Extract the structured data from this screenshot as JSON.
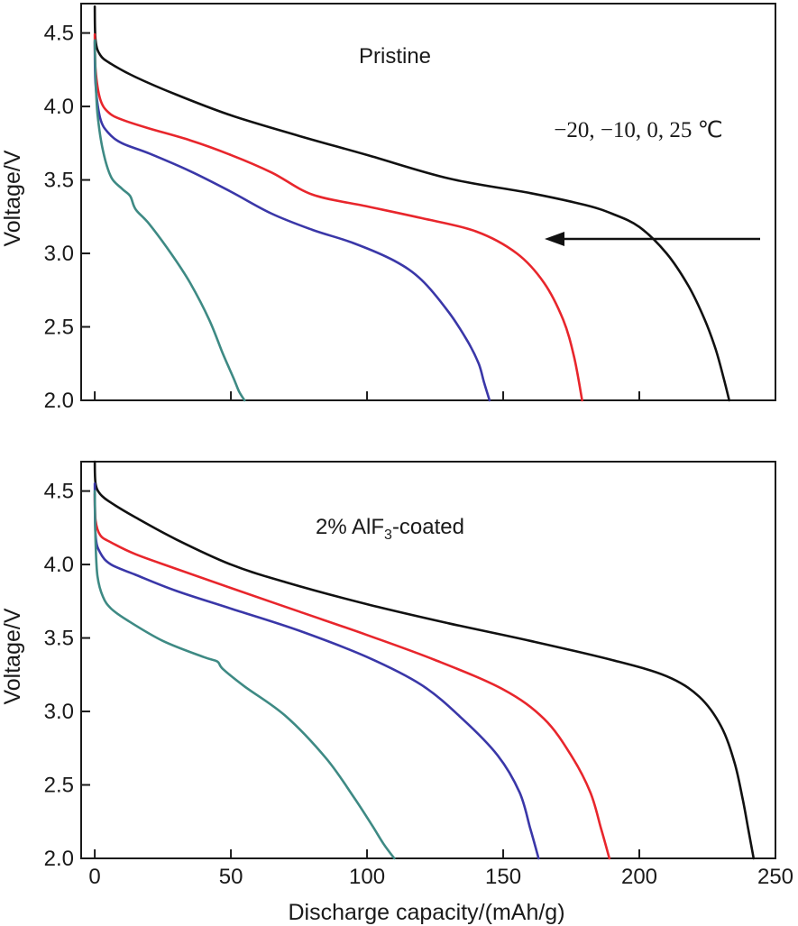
{
  "chart_data": [
    {
      "type": "line",
      "title": "Pristine",
      "annotation": "−20, −10, 0, 25 ℃",
      "annotation_arrow": "pointing left (decreasing temperature)",
      "xlabel": "",
      "ylabel": "Voltage/V",
      "xlim": [
        -5,
        250
      ],
      "ylim": [
        2.0,
        4.7
      ],
      "xticks": [
        0,
        50,
        100,
        150,
        200,
        250
      ],
      "yticks": [
        "2.0",
        "2.5",
        "3.0",
        "3.5",
        "4.0",
        "4.5"
      ],
      "series": [
        {
          "name": "25 ℃",
          "color": "#111111",
          "x": [
            0,
            0.3,
            2,
            6,
            15,
            30,
            50,
            75,
            100,
            130,
            160,
            180,
            190,
            200,
            210,
            218,
            224,
            228,
            231,
            233
          ],
          "y": [
            4.68,
            4.45,
            4.35,
            4.29,
            4.2,
            4.08,
            3.94,
            3.8,
            3.67,
            3.51,
            3.41,
            3.33,
            3.27,
            3.18,
            3.0,
            2.78,
            2.55,
            2.35,
            2.15,
            2.0
          ]
        },
        {
          "name": "0 ℃",
          "color": "#e8262c",
          "x": [
            0,
            0.3,
            2,
            5,
            10,
            20,
            35,
            50,
            65,
            80,
            100,
            120,
            140,
            155,
            165,
            172,
            176,
            179
          ],
          "y": [
            4.49,
            4.25,
            4.05,
            3.96,
            3.91,
            3.85,
            3.77,
            3.67,
            3.55,
            3.4,
            3.32,
            3.24,
            3.15,
            3.0,
            2.8,
            2.55,
            2.3,
            2.0
          ]
        },
        {
          "name": "-10 ℃",
          "color": "#3a37a8",
          "x": [
            0,
            0.3,
            2,
            5,
            10,
            20,
            35,
            50,
            65,
            80,
            95,
            110,
            120,
            130,
            137,
            141,
            143,
            145
          ],
          "y": [
            4.44,
            4.15,
            3.92,
            3.82,
            3.75,
            3.68,
            3.56,
            3.42,
            3.27,
            3.16,
            3.07,
            2.95,
            2.82,
            2.6,
            2.4,
            2.25,
            2.12,
            2.0
          ]
        },
        {
          "name": "-20 ℃",
          "color": "#3e8a84",
          "x": [
            0,
            0.3,
            1,
            3,
            6,
            10,
            13,
            15,
            20,
            28,
            35,
            42,
            47,
            51,
            53,
            55
          ],
          "y": [
            4.45,
            4.2,
            3.95,
            3.7,
            3.52,
            3.44,
            3.39,
            3.3,
            3.2,
            3.0,
            2.8,
            2.55,
            2.32,
            2.15,
            2.06,
            2.0
          ]
        }
      ]
    },
    {
      "type": "line",
      "title": "2% AlF₃-coated",
      "annotation": "2% AlF",
      "annotation_sub": "3",
      "annotation_tail": "-coated",
      "xlabel": "Discharge capacity/(mAh/g)",
      "ylabel": "Voltage/V",
      "xlim": [
        -5,
        250
      ],
      "ylim": [
        2.0,
        4.7
      ],
      "xticks": [
        "0",
        "50",
        "100",
        "150",
        "200",
        "250"
      ],
      "yticks": [
        "2.0",
        "2.5",
        "3.0",
        "3.5",
        "4.0",
        "4.5"
      ],
      "series": [
        {
          "name": "25 ℃",
          "color": "#111111",
          "x": [
            0,
            0.3,
            2,
            6,
            15,
            30,
            50,
            70,
            100,
            130,
            160,
            190,
            210,
            222,
            230,
            235,
            238,
            240,
            242
          ],
          "y": [
            4.7,
            4.55,
            4.48,
            4.42,
            4.32,
            4.17,
            4.0,
            3.88,
            3.73,
            3.6,
            3.48,
            3.35,
            3.24,
            3.1,
            2.9,
            2.65,
            2.4,
            2.2,
            2.0
          ]
        },
        {
          "name": "0 ℃",
          "color": "#e8262c",
          "x": [
            0,
            0.3,
            2,
            6,
            15,
            30,
            50,
            75,
            100,
            125,
            150,
            165,
            175,
            182,
            186,
            189
          ],
          "y": [
            4.48,
            4.3,
            4.2,
            4.15,
            4.07,
            3.97,
            3.84,
            3.68,
            3.52,
            3.35,
            3.15,
            2.95,
            2.7,
            2.45,
            2.2,
            2.0
          ]
        },
        {
          "name": "-10 ℃",
          "color": "#3a37a8",
          "x": [
            0,
            0.3,
            2,
            6,
            15,
            30,
            50,
            75,
            100,
            120,
            135,
            148,
            156,
            160,
            163
          ],
          "y": [
            4.55,
            4.2,
            4.08,
            4.0,
            3.93,
            3.82,
            3.7,
            3.55,
            3.37,
            3.18,
            2.95,
            2.7,
            2.45,
            2.2,
            2.0
          ]
        },
        {
          "name": "-20 ℃",
          "color": "#3e8a84",
          "x": [
            0,
            0.3,
            1,
            3,
            6,
            12,
            25,
            40,
            45,
            47,
            55,
            70,
            85,
            95,
            102,
            106,
            110
          ],
          "y": [
            4.5,
            4.15,
            3.92,
            3.78,
            3.7,
            3.62,
            3.48,
            3.37,
            3.34,
            3.29,
            3.17,
            2.97,
            2.68,
            2.42,
            2.22,
            2.1,
            2.0
          ]
        }
      ]
    }
  ]
}
